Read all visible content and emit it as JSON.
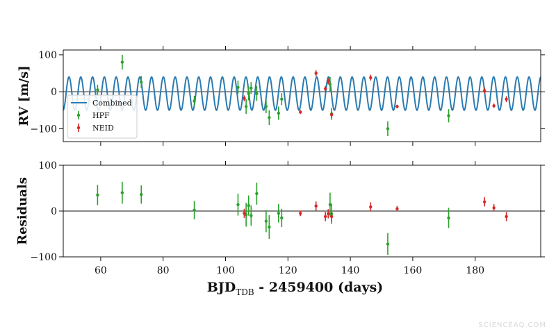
{
  "watermark": "SCIENCEAQ.COM",
  "chart_data": [
    {
      "id": "rv",
      "type": "scatter",
      "ylabel": "RV [m/s]",
      "xlim": [
        48,
        201
      ],
      "ylim": [
        -135,
        113
      ],
      "yticks": [
        -100,
        0,
        100
      ],
      "xticks": [
        60,
        80,
        100,
        120,
        140,
        160,
        180
      ],
      "show_xtick_labels": false,
      "grid": false,
      "legend_placement": "lower-left",
      "model": {
        "name": "Combined",
        "color": "#2a7bb0",
        "amplitude": 45,
        "offset": -5,
        "period": 3.78,
        "phase_day": 48.9
      },
      "series": [
        {
          "name": "HPF",
          "color": "#2ca02c",
          "points": [
            {
              "x": 59.0,
              "y": 5,
              "err": 14
            },
            {
              "x": 66.9,
              "y": 80,
              "err": 20
            },
            {
              "x": 73.0,
              "y": 26,
              "err": 16
            },
            {
              "x": 90.0,
              "y": -25,
              "err": 14
            },
            {
              "x": 104.0,
              "y": 12,
              "err": 18
            },
            {
              "x": 106.6,
              "y": -40,
              "err": 20
            },
            {
              "x": 107.4,
              "y": -5,
              "err": 18
            },
            {
              "x": 108.2,
              "y": 10,
              "err": 16
            },
            {
              "x": 110.0,
              "y": -5,
              "err": 20
            },
            {
              "x": 113.0,
              "y": -40,
              "err": 18
            },
            {
              "x": 114.0,
              "y": -70,
              "err": 20
            },
            {
              "x": 117.0,
              "y": -58,
              "err": 18
            },
            {
              "x": 118.0,
              "y": -20,
              "err": 16
            },
            {
              "x": 133.5,
              "y": 20,
              "err": 20
            },
            {
              "x": 134.0,
              "y": -60,
              "err": 16
            },
            {
              "x": 152.0,
              "y": -100,
              "err": 20
            },
            {
              "x": 171.5,
              "y": -65,
              "err": 18
            }
          ]
        },
        {
          "name": "NEID",
          "color": "#d62728",
          "points": [
            {
              "x": 106.0,
              "y": -18,
              "err": 8
            },
            {
              "x": 124.0,
              "y": -55,
              "err": 5
            },
            {
              "x": 129.0,
              "y": 50,
              "err": 8
            },
            {
              "x": 132.0,
              "y": 8,
              "err": 8
            },
            {
              "x": 132.9,
              "y": 28,
              "err": 8
            },
            {
              "x": 134.0,
              "y": -62,
              "err": 8
            },
            {
              "x": 146.5,
              "y": 38,
              "err": 8
            },
            {
              "x": 155.0,
              "y": -40,
              "err": 5
            },
            {
              "x": 183.0,
              "y": 3,
              "err": 8
            },
            {
              "x": 186.0,
              "y": -38,
              "err": 6
            },
            {
              "x": 190.0,
              "y": -20,
              "err": 8
            }
          ]
        }
      ]
    },
    {
      "id": "resid",
      "type": "scatter",
      "ylabel": "Residuals",
      "xlabel_main": "BJD",
      "xlabel_sub": "TDB",
      "xlabel_rest": " - 2459400 (days)",
      "xlim": [
        48,
        201
      ],
      "ylim": [
        -100,
        100
      ],
      "yticks": [
        -100,
        0,
        100
      ],
      "xticks": [
        60,
        80,
        100,
        120,
        140,
        160,
        180
      ],
      "show_xtick_labels": true,
      "grid": false,
      "reference_line": 0,
      "series": [
        {
          "name": "HPF",
          "color": "#2ca02c",
          "points": [
            {
              "x": 59.0,
              "y": 35,
              "err": 22
            },
            {
              "x": 66.9,
              "y": 40,
              "err": 24
            },
            {
              "x": 73.0,
              "y": 36,
              "err": 20
            },
            {
              "x": 90.0,
              "y": 2,
              "err": 20
            },
            {
              "x": 104.0,
              "y": 14,
              "err": 24
            },
            {
              "x": 106.6,
              "y": -8,
              "err": 26
            },
            {
              "x": 107.4,
              "y": 12,
              "err": 22
            },
            {
              "x": 108.2,
              "y": -10,
              "err": 22
            },
            {
              "x": 110.0,
              "y": 38,
              "err": 24
            },
            {
              "x": 113.0,
              "y": -22,
              "err": 24
            },
            {
              "x": 114.0,
              "y": -35,
              "err": 26
            },
            {
              "x": 117.0,
              "y": -5,
              "err": 20
            },
            {
              "x": 118.0,
              "y": -15,
              "err": 20
            },
            {
              "x": 133.5,
              "y": 14,
              "err": 26
            },
            {
              "x": 134.0,
              "y": -6,
              "err": 22
            },
            {
              "x": 152.0,
              "y": -72,
              "err": 24
            },
            {
              "x": 171.5,
              "y": -15,
              "err": 22
            }
          ]
        },
        {
          "name": "NEID",
          "color": "#d62728",
          "points": [
            {
              "x": 106.0,
              "y": -5,
              "err": 10
            },
            {
              "x": 124.0,
              "y": -5,
              "err": 6
            },
            {
              "x": 129.0,
              "y": 11,
              "err": 10
            },
            {
              "x": 132.0,
              "y": -12,
              "err": 10
            },
            {
              "x": 132.9,
              "y": -6,
              "err": 10
            },
            {
              "x": 134.0,
              "y": -12,
              "err": 10
            },
            {
              "x": 146.5,
              "y": 9,
              "err": 10
            },
            {
              "x": 155.0,
              "y": 5,
              "err": 6
            },
            {
              "x": 183.0,
              "y": 20,
              "err": 10
            },
            {
              "x": 186.0,
              "y": 7,
              "err": 8
            },
            {
              "x": 190.0,
              "y": -12,
              "err": 10
            }
          ]
        }
      ]
    }
  ]
}
